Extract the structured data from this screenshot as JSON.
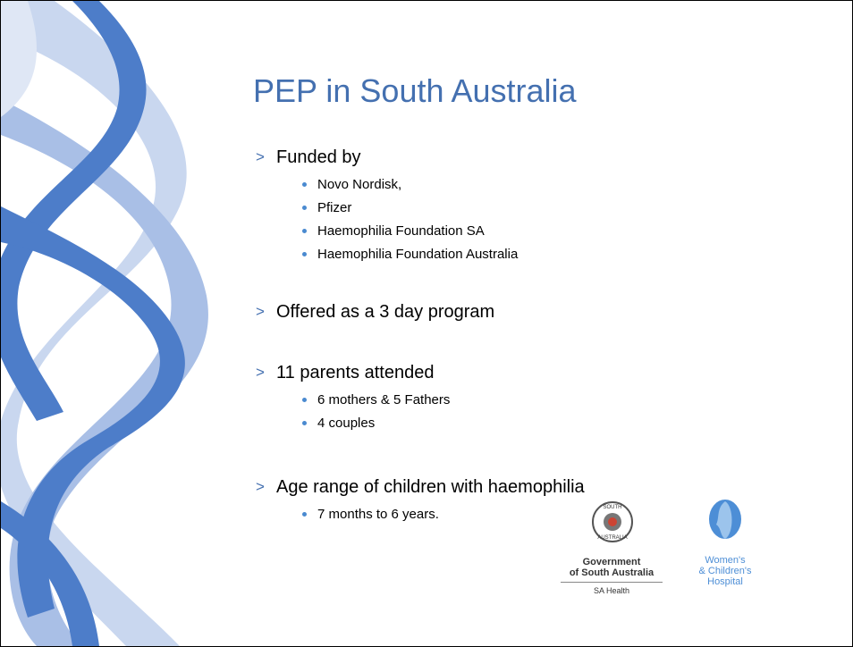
{
  "slide": {
    "title": "PEP in South Australia",
    "bullets": [
      {
        "text": "Funded by",
        "items": [
          "Novo Nordisk,",
          "Pfizer",
          "Haemophilia Foundation SA",
          "Haemophilia Foundation Australia"
        ]
      },
      {
        "text": "Offered as a 3 day program"
      },
      {
        "text": "11 parents attended",
        "items": [
          "6 mothers & 5 Fathers",
          "4 couples"
        ]
      },
      {
        "text": "Age range of children with haemophilia",
        "items": [
          "7 months to 6 years."
        ]
      }
    ]
  },
  "logos": {
    "government": {
      "seal_top": "SOUTH",
      "seal_bottom": "AUSTRALIA",
      "lines": [
        "Government",
        "of South Australia"
      ],
      "department": "SA Health"
    },
    "hospital": {
      "lines": [
        "Women's",
        "& Children's",
        "Hospital"
      ]
    }
  }
}
